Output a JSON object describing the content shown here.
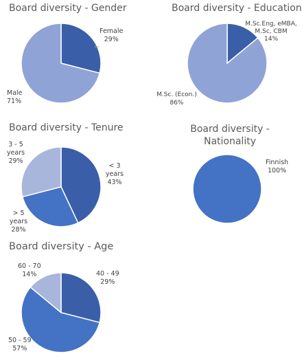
{
  "colors": {
    "dark": "#3A5FA8",
    "mid": "#4472C4",
    "light": "#8FA3D6",
    "lighter": "#A9B6DB",
    "stroke": "#FFFFFF"
  },
  "chart_data": [
    {
      "type": "pie",
      "title": "Board diversity - Gender",
      "labels": [
        "Female",
        "Male"
      ],
      "values": [
        29,
        71
      ],
      "value_labels": [
        "29%",
        "71%"
      ]
    },
    {
      "type": "pie",
      "title": "Board diversity - Education",
      "labels": [
        "M.Sc.Eng, eMBA, M.Sc, CBM",
        "M.Sc. (Econ.)"
      ],
      "values": [
        14,
        86
      ],
      "value_labels": [
        "14%",
        "86%"
      ]
    },
    {
      "type": "pie",
      "title": "Board diversity - Tenure",
      "labels": [
        "< 3 years",
        "> 5 years",
        "3 - 5 years"
      ],
      "values": [
        43,
        28,
        29
      ],
      "value_labels": [
        "43%",
        "28%",
        "29%"
      ]
    },
    {
      "type": "pie",
      "title": "Board diversity - Nationality",
      "labels": [
        "Finnish"
      ],
      "values": [
        100
      ],
      "value_labels": [
        "100%"
      ]
    },
    {
      "type": "pie",
      "title": "Board diversity - Age",
      "labels": [
        "40 - 49",
        "50 - 59",
        "60 - 70"
      ],
      "values": [
        29,
        57,
        14
      ],
      "value_labels": [
        "29%",
        "57%",
        "14%"
      ]
    }
  ]
}
